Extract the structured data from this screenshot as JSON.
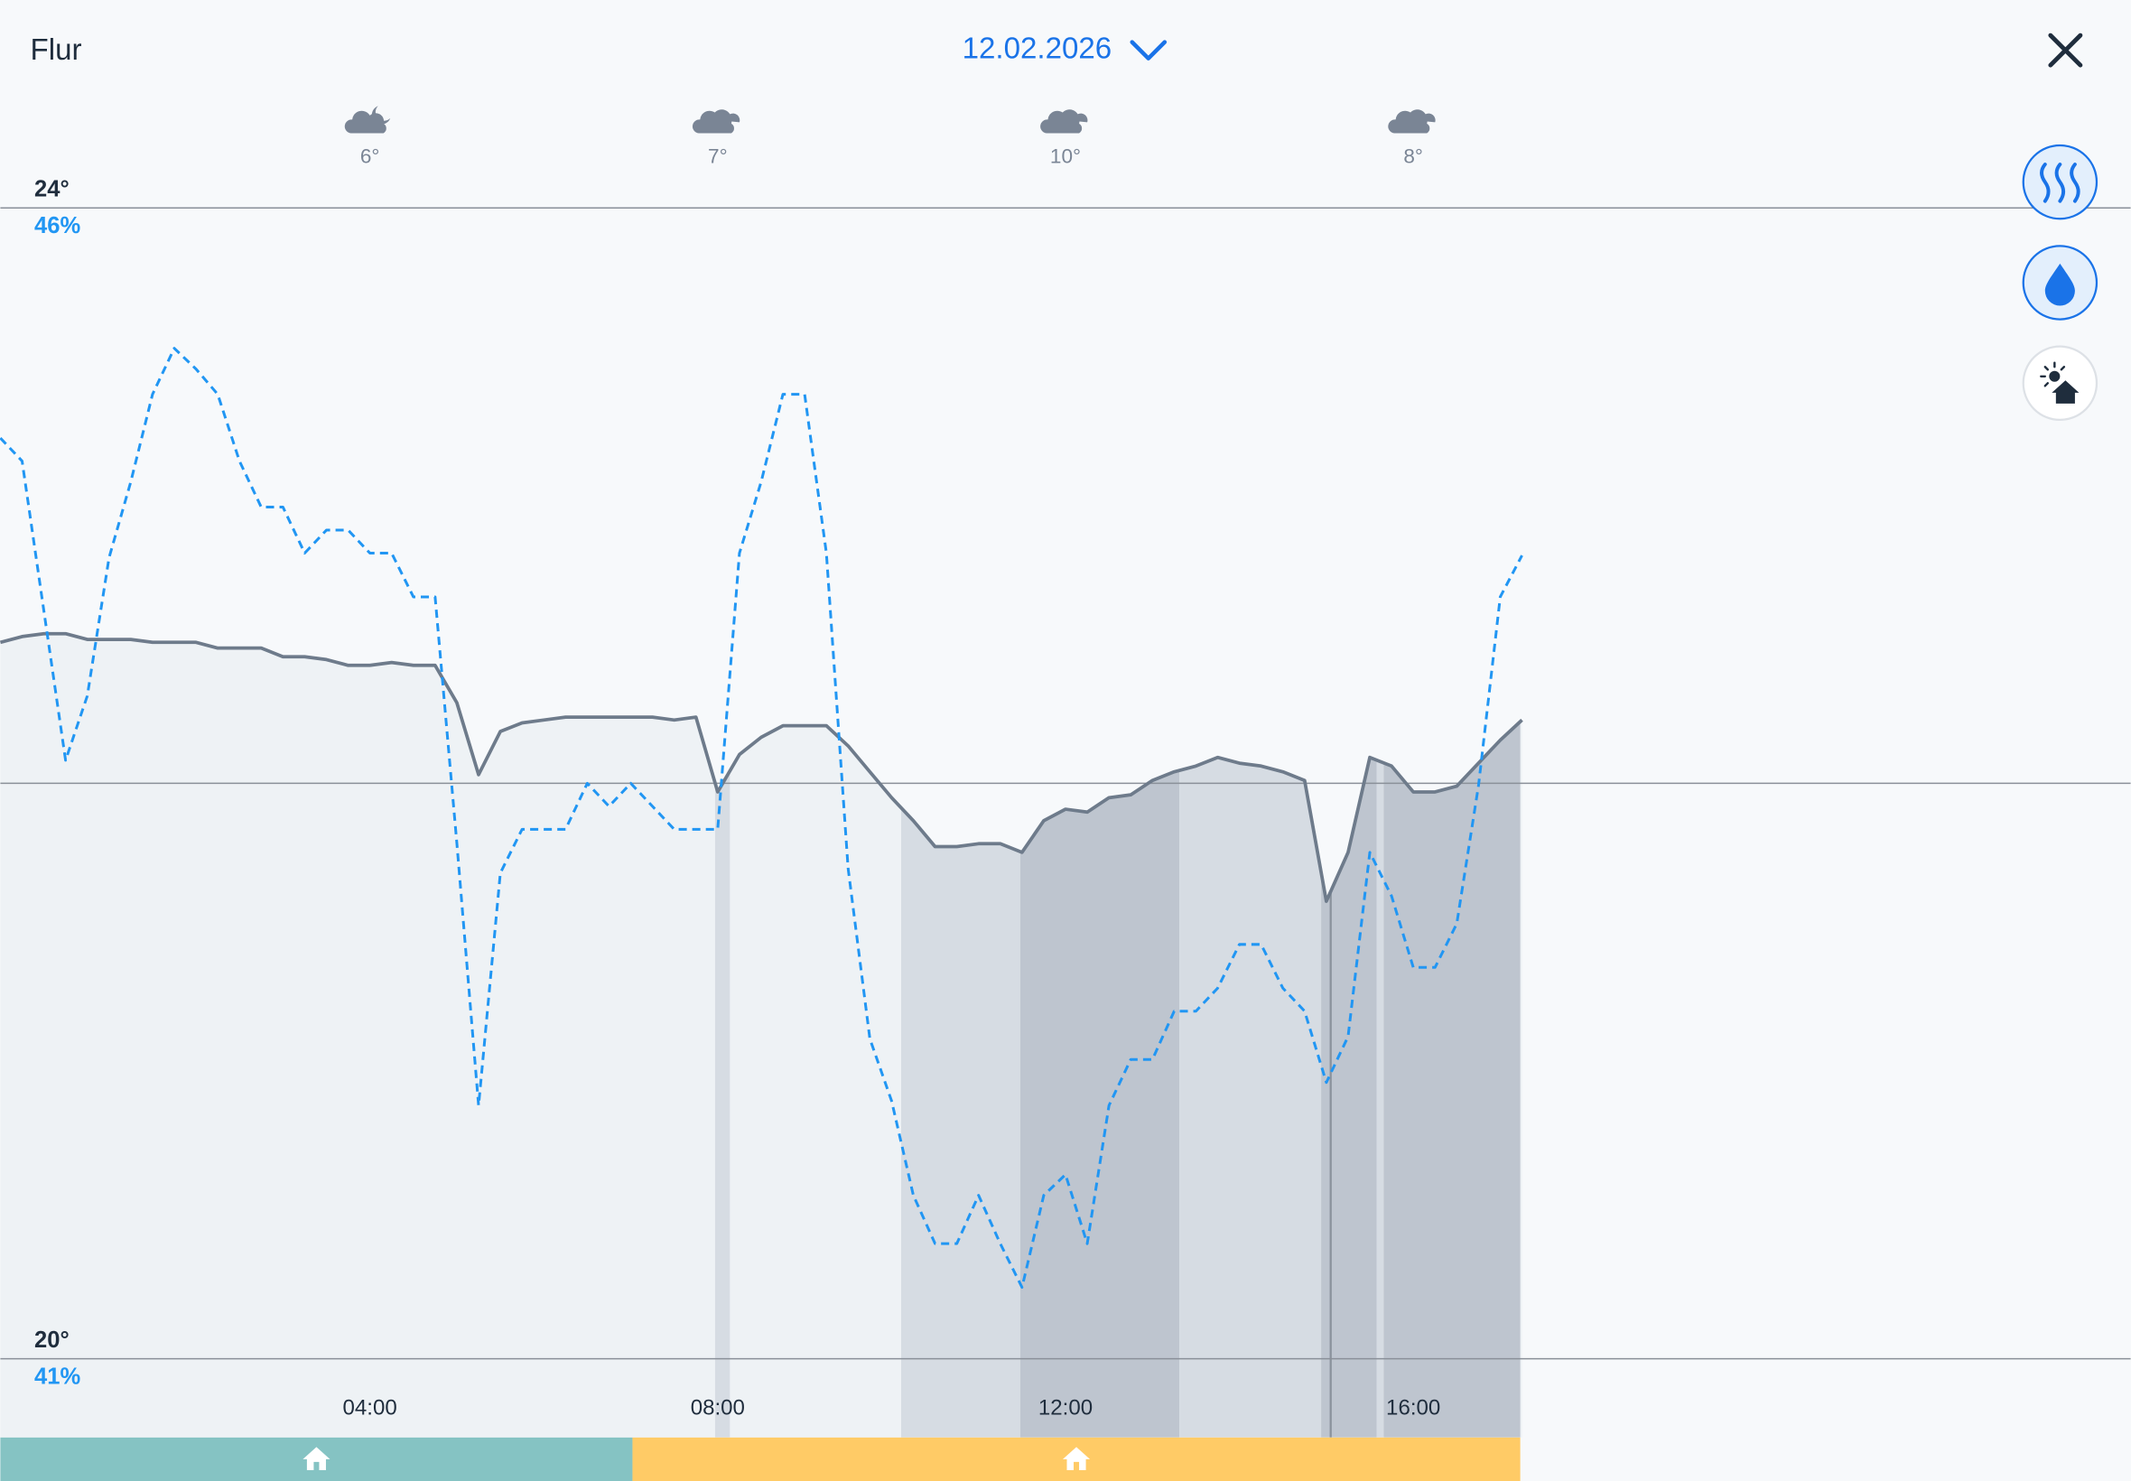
{
  "header": {
    "title": "Flur",
    "date": "12.02.2026"
  },
  "chart_data": {
    "type": "line",
    "xlim": [
      -0.25,
      24.25
    ],
    "xticks": [
      {
        "value": 4,
        "label": "04:00"
      },
      {
        "value": 8,
        "label": "08:00"
      },
      {
        "value": 12,
        "label": "12:00"
      },
      {
        "value": 16,
        "label": "16:00"
      }
    ],
    "ylim": [
      20,
      24
    ],
    "yticks": [
      {
        "value": 20,
        "label": "20°"
      },
      {
        "value": 24,
        "label": "24°"
      }
    ],
    "y2lim": [
      41,
      46
    ],
    "y2ticks": [
      {
        "value": 41,
        "label": "41%"
      },
      {
        "value": 46,
        "label": "46%"
      }
    ],
    "gridlines": [
      22
    ],
    "x": [
      -0.25,
      0,
      0.25,
      0.5,
      0.75,
      1,
      1.25,
      1.5,
      1.75,
      2,
      2.25,
      2.5,
      2.75,
      3,
      3.25,
      3.5,
      3.75,
      4,
      4.25,
      4.5,
      4.75,
      5,
      5.25,
      5.5,
      5.75,
      6,
      6.25,
      6.5,
      6.75,
      7,
      7.25,
      7.5,
      7.75,
      8,
      8.25,
      8.5,
      8.75,
      9,
      9.25,
      9.5,
      9.75,
      10,
      10.25,
      10.5,
      10.75,
      11,
      11.25,
      11.5,
      11.75,
      12,
      12.25,
      12.5,
      12.75,
      13,
      13.25,
      13.5,
      13.75,
      14,
      14.25,
      14.5,
      14.75,
      15,
      15.25,
      15.5,
      15.75,
      16,
      16.25,
      16.5,
      16.75,
      17,
      17.25
    ],
    "series": [
      {
        "color": "#6e7b8b",
        "area": true,
        "values": [
          22.49,
          22.51,
          22.52,
          22.52,
          22.5,
          22.5,
          22.5,
          22.49,
          22.49,
          22.49,
          22.47,
          22.47,
          22.47,
          22.44,
          22.44,
          22.43,
          22.41,
          22.41,
          22.42,
          22.41,
          22.41,
          22.28,
          22.03,
          22.18,
          22.21,
          22.22,
          22.23,
          22.23,
          22.23,
          22.23,
          22.23,
          22.22,
          22.23,
          21.97,
          22.1,
          22.16,
          22.2,
          22.2,
          22.2,
          22.13,
          22.04,
          21.95,
          21.87,
          21.78,
          21.78,
          21.79,
          21.79,
          21.76,
          21.87,
          21.91,
          21.9,
          21.95,
          21.96,
          22.01,
          22.04,
          22.06,
          22.09,
          22.07,
          22.06,
          22.04,
          22.01,
          21.59,
          21.76,
          22.09,
          22.06,
          21.97,
          21.97,
          21.99,
          22.07,
          22.15,
          22.22
        ]
      },
      {
        "color": "#2196f3",
        "axis": "y2",
        "dashed": true,
        "values": [
          45.0,
          44.9,
          44.25,
          43.6,
          43.88,
          44.48,
          44.81,
          45.19,
          45.39,
          45.3,
          45.19,
          44.9,
          44.7,
          44.7,
          44.5,
          44.6,
          44.6,
          44.5,
          44.5,
          44.31,
          44.31,
          43.24,
          42.1,
          43.11,
          43.3,
          43.3,
          43.3,
          43.5,
          43.4,
          43.5,
          43.4,
          43.3,
          43.3,
          43.3,
          44.5,
          44.81,
          45.19,
          45.19,
          44.5,
          43.13,
          42.39,
          42.12,
          41.71,
          41.5,
          41.5,
          41.71,
          41.5,
          41.31,
          41.71,
          41.8,
          41.5,
          42.1,
          42.3,
          42.3,
          42.51,
          42.51,
          42.61,
          42.8,
          42.8,
          42.61,
          42.51,
          42.2,
          42.4,
          43.2,
          43.01,
          42.7,
          42.7,
          42.89,
          43.49,
          44.31,
          44.49
        ]
      }
    ],
    "bands": [
      {
        "start": 7.97,
        "end": 8.14,
        "color": "#d6dce3"
      },
      {
        "start": 10.11,
        "end": 11.48,
        "color": "#d6dce3"
      },
      {
        "start": 11.48,
        "end": 13.31,
        "color": "#bec5cf"
      },
      {
        "start": 13.31,
        "end": 14.94,
        "color": "#d6dce3"
      },
      {
        "start": 14.94,
        "end": 15.58,
        "color": "#bec5cf"
      },
      {
        "start": 15.58,
        "end": 15.66,
        "color": "#d6dce3"
      },
      {
        "start": 15.66,
        "end": 17.23,
        "color": "#bec5cf"
      }
    ],
    "markers": [
      15.05
    ],
    "weather": [
      {
        "hour": 4,
        "temp": "6°",
        "icon": "cloudy-night"
      },
      {
        "hour": 8,
        "temp": "7°",
        "icon": "cloudy"
      },
      {
        "hour": 12,
        "temp": "10°",
        "icon": "cloudy"
      },
      {
        "hour": 16,
        "temp": "8°",
        "icon": "cloudy"
      }
    ],
    "schedule": [
      {
        "start": -0.25,
        "end": 7.02,
        "color": "#85c3c3"
      },
      {
        "start": 7.02,
        "end": 17.23,
        "color": "#ffcb66"
      }
    ]
  }
}
